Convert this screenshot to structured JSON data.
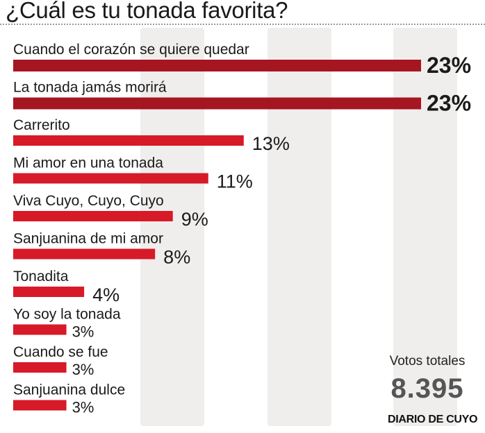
{
  "chart_data": {
    "type": "bar",
    "orientation": "horizontal",
    "title": "¿Cuál es tu tonada favorita?",
    "categories": [
      "Cuando el corazón se quiere quedar",
      "La tonada jamás morirá",
      "Carrerito",
      "Mi amor en una tonada",
      "Viva Cuyo, Cuyo, Cuyo",
      "Sanjuanina de mi amor",
      "Tonadita",
      "Yo soy la tonada",
      "Cuando se fue",
      "Sanjuanina dulce"
    ],
    "values": [
      23,
      23,
      13,
      11,
      9,
      8,
      4,
      3,
      3,
      3
    ],
    "value_labels": [
      "23%",
      "23%",
      "13%",
      "11%",
      "9%",
      "8%",
      "4%",
      "3%",
      "3%",
      "3%"
    ],
    "xlim": [
      0,
      23
    ],
    "colors": {
      "top": "#a61620",
      "default": "#d71a28",
      "band": "#f0eeec"
    }
  },
  "summary": {
    "total_label": "Votos totales",
    "total_value": "8.395",
    "source": "DIARIO DE CUYO"
  }
}
